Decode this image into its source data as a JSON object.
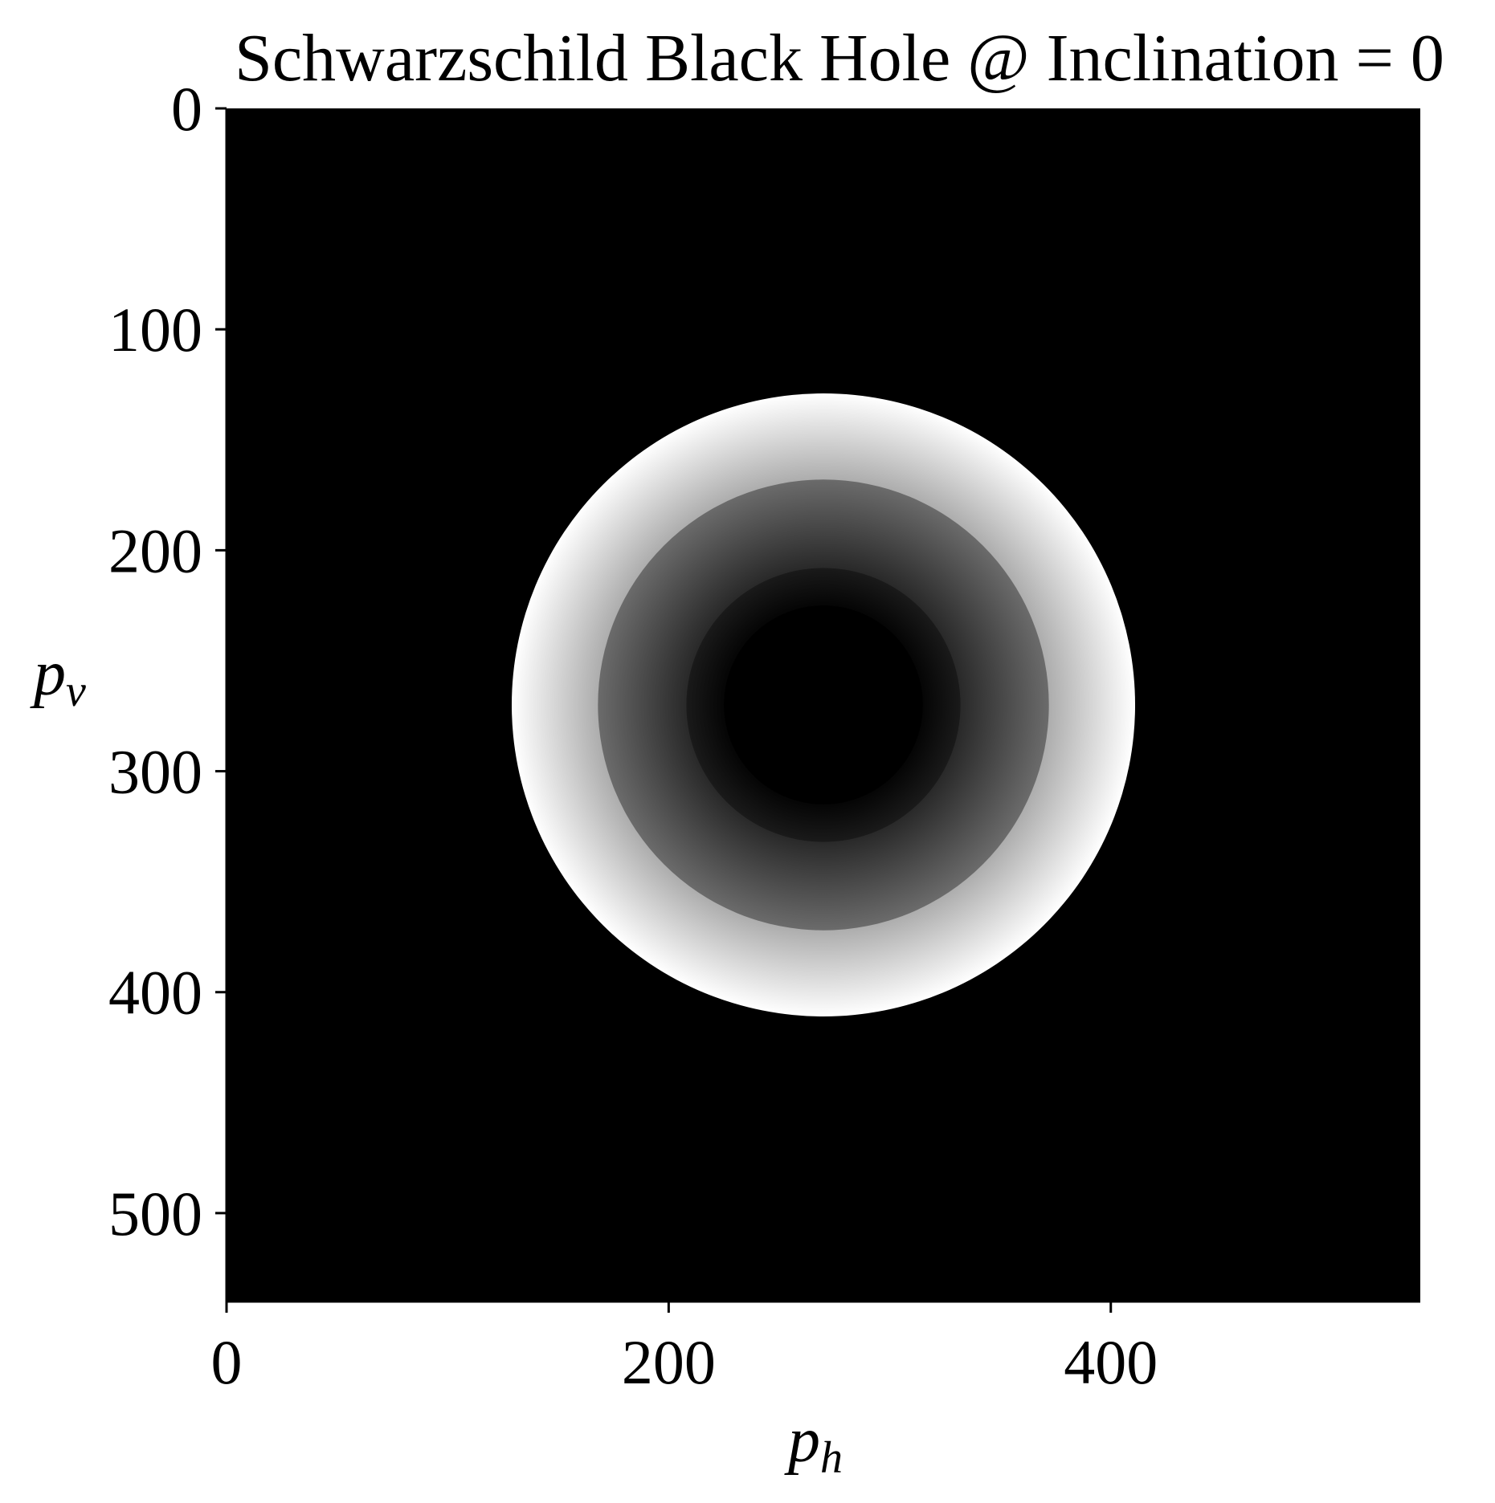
{
  "chart_data": {
    "type": "heatmap",
    "title": "Schwarzschild Black Hole @ Inclination = 0",
    "xlabel": {
      "base": "p",
      "sub": "h"
    },
    "ylabel": {
      "base": "p",
      "sub": "v"
    },
    "xlim": [
      0,
      540
    ],
    "ylim": [
      540,
      0
    ],
    "y_inverted": true,
    "xticks": [
      0,
      200,
      400
    ],
    "yticks": [
      0,
      100,
      200,
      300,
      400,
      500
    ],
    "grid": false,
    "legend": "none",
    "colormap": "grayscale",
    "background_value": 0.0,
    "center": [
      270,
      270
    ],
    "rings": [
      {
        "r_outer": 141,
        "r_inner": 102,
        "value_inner": 0.68,
        "value_outer": 1.0
      },
      {
        "r_outer": 102,
        "r_inner": 62,
        "value_inner": 0.16,
        "value_outer": 0.42
      },
      {
        "r_outer": 62,
        "r_inner": 45,
        "value_inner": 0.02,
        "value_outer": 0.1
      },
      {
        "r_outer": 45,
        "r_inner": 0,
        "value_inner": 0.0,
        "value_outer": 0.0
      }
    ]
  },
  "colors": {
    "background": "#ffffff",
    "image_background": "#000000",
    "axis": "#000000",
    "text": "#000000"
  }
}
